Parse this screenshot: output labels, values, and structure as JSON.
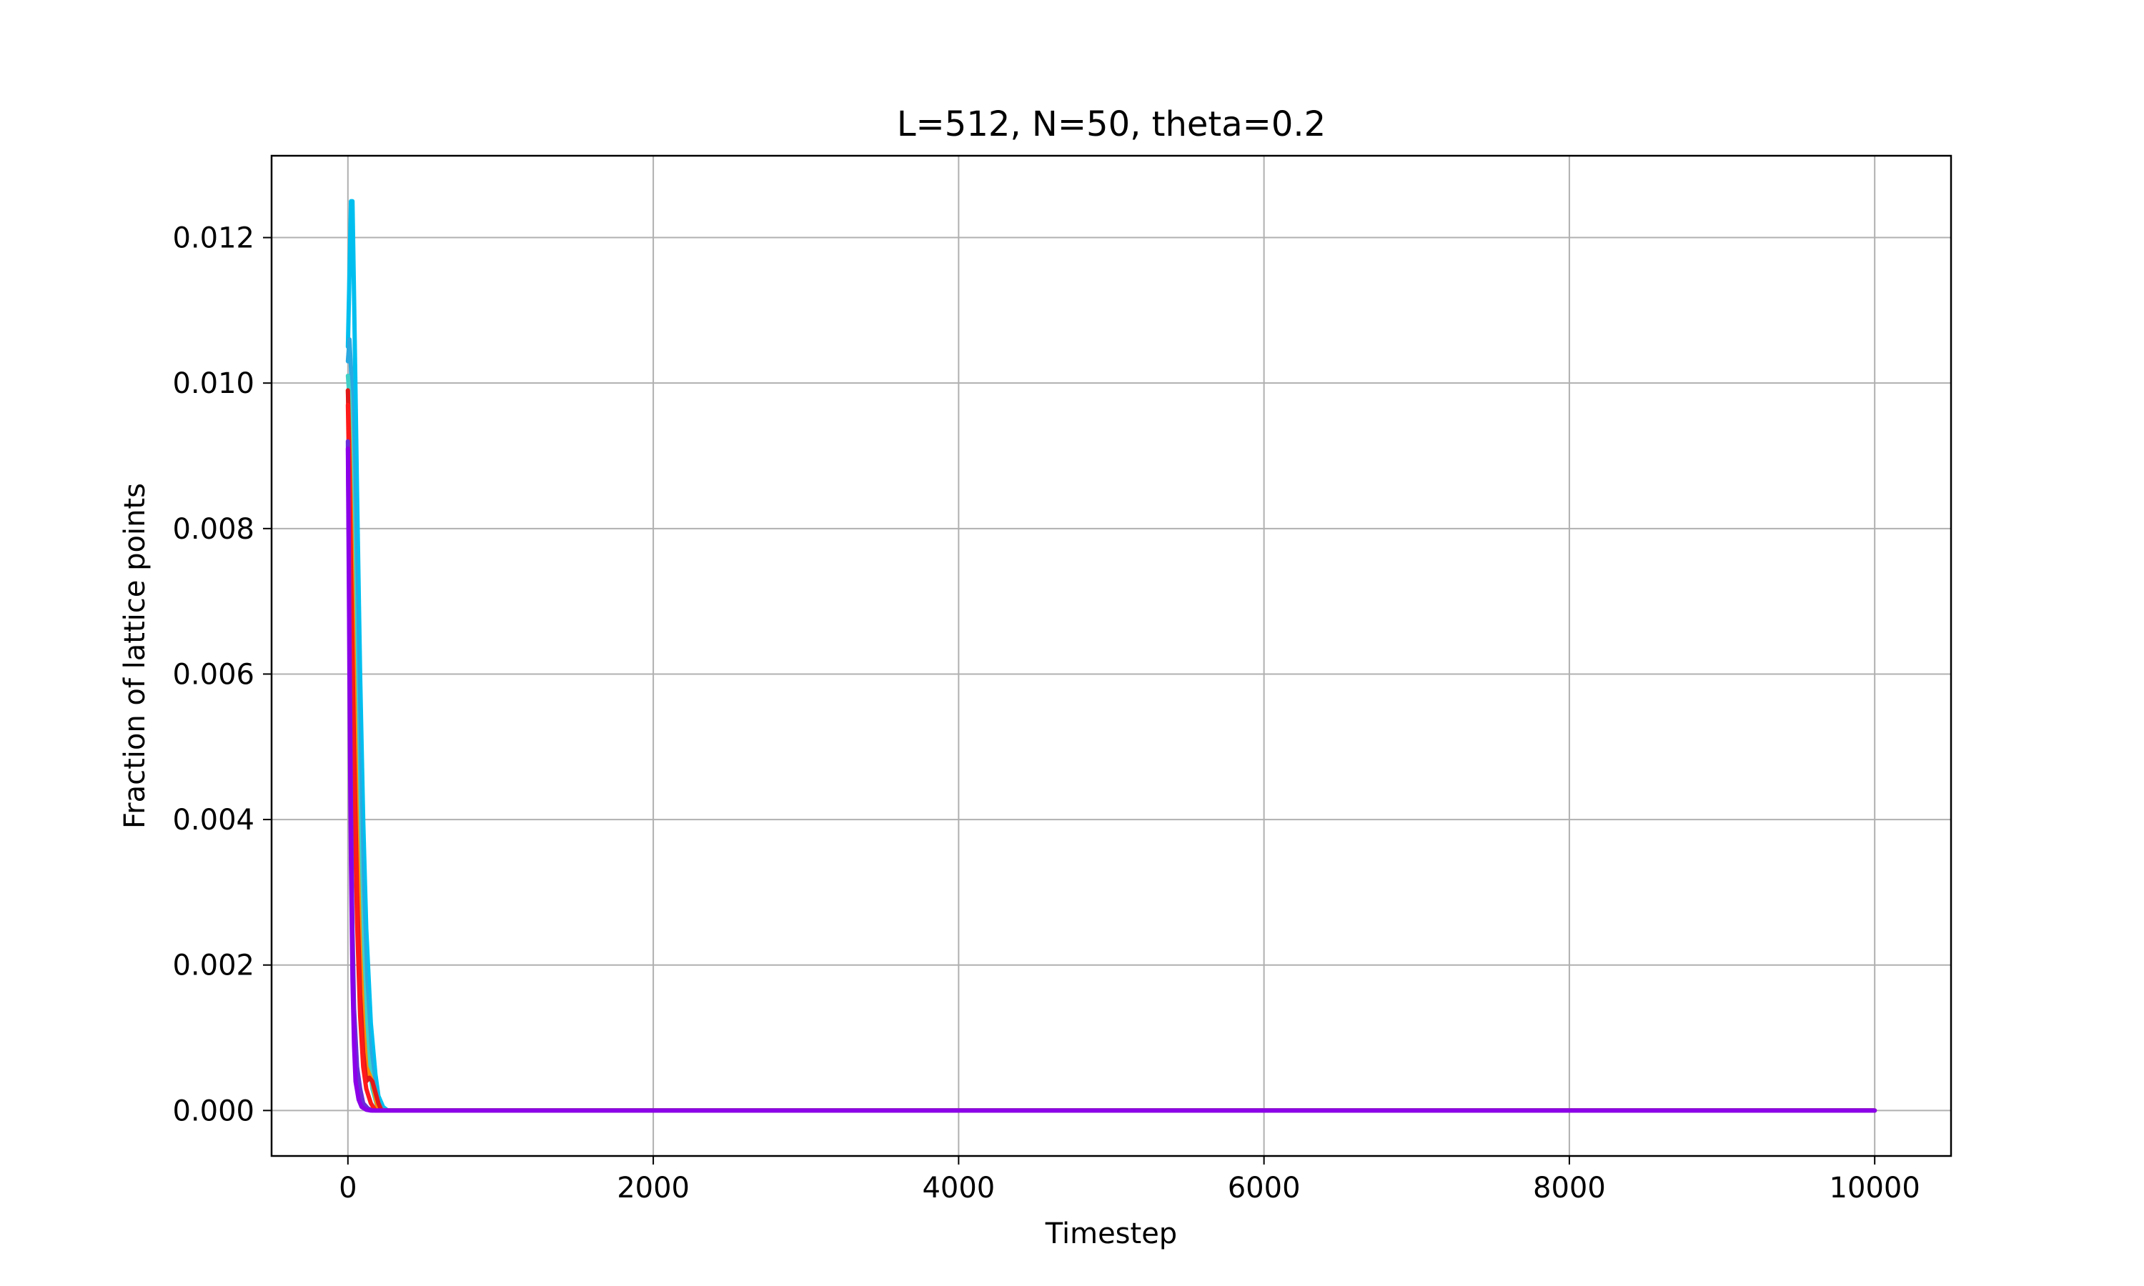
{
  "chart_data": {
    "type": "line",
    "title": "L=512, N=50, theta=0.2",
    "xlabel": "Timestep",
    "ylabel": "Fraction of lattice points",
    "xlim": [
      -500,
      10500
    ],
    "ylim": [
      -0.000625,
      0.013125
    ],
    "xticks": [
      0,
      2000,
      4000,
      6000,
      8000,
      10000
    ],
    "xtick_labels": [
      "0",
      "2000",
      "4000",
      "6000",
      "8000",
      "10000"
    ],
    "yticks": [
      0.0,
      0.002,
      0.004,
      0.006,
      0.008,
      0.01,
      0.012
    ],
    "ytick_labels": [
      "0.000",
      "0.002",
      "0.004",
      "0.006",
      "0.008",
      "0.010",
      "0.012"
    ],
    "grid": true,
    "legend": "none",
    "series": [
      {
        "color": "#00bfef",
        "x": [
          0,
          10,
          20,
          30,
          40,
          60,
          80,
          100,
          120,
          150,
          180,
          200,
          230,
          260,
          10000
        ],
        "y": [
          0.0105,
          0.0115,
          0.0125,
          0.0125,
          0.0112,
          0.0085,
          0.006,
          0.004,
          0.0025,
          0.0012,
          0.0005,
          0.0002,
          5e-05,
          0.0,
          0.0
        ]
      },
      {
        "color": "#2aa8e0",
        "x": [
          0,
          10,
          20,
          40,
          60,
          80,
          100,
          130,
          160,
          200,
          240,
          10000
        ],
        "y": [
          0.0103,
          0.0106,
          0.0102,
          0.0085,
          0.0062,
          0.0042,
          0.0026,
          0.0012,
          0.0005,
          0.0001,
          0.0,
          0.0
        ]
      },
      {
        "color": "#40d0c8",
        "x": [
          0,
          10,
          20,
          40,
          60,
          80,
          100,
          130,
          160,
          200,
          10000
        ],
        "y": [
          0.0101,
          0.0098,
          0.009,
          0.007,
          0.0048,
          0.003,
          0.0018,
          0.0008,
          0.0003,
          0.0,
          0.0
        ]
      },
      {
        "color": "#ff8c00",
        "x": [
          0,
          10,
          20,
          40,
          60,
          80,
          100,
          120,
          140,
          160,
          180,
          200,
          10000
        ],
        "y": [
          0.0099,
          0.0092,
          0.0082,
          0.006,
          0.0038,
          0.0022,
          0.0012,
          0.0006,
          0.0005,
          0.0004,
          0.0002,
          0.0,
          0.0
        ]
      },
      {
        "color": "#e01818",
        "x": [
          0,
          10,
          20,
          40,
          60,
          80,
          100,
          120,
          140,
          160,
          180,
          200,
          220,
          10000
        ],
        "y": [
          0.0099,
          0.0088,
          0.0075,
          0.005,
          0.003,
          0.0016,
          0.0008,
          0.0004,
          0.00045,
          0.0004,
          0.00025,
          0.0001,
          0.0,
          0.0
        ]
      },
      {
        "color": "#ff1a1a",
        "x": [
          0,
          10,
          20,
          40,
          60,
          80,
          100,
          120,
          150,
          180,
          10000
        ],
        "y": [
          0.0097,
          0.0085,
          0.007,
          0.0045,
          0.0026,
          0.0013,
          0.0006,
          0.0003,
          0.0001,
          0.0,
          0.0
        ]
      },
      {
        "color": "#6a2cd8",
        "x": [
          0,
          5,
          10,
          20,
          30,
          40,
          60,
          80,
          100,
          130,
          160,
          10000
        ],
        "y": [
          0.0092,
          0.008,
          0.0065,
          0.0042,
          0.0025,
          0.0014,
          0.0006,
          0.0003,
          0.0001,
          3e-05,
          0.0,
          0.0
        ]
      },
      {
        "color": "#8b00e8",
        "x": [
          0,
          5,
          10,
          15,
          20,
          30,
          40,
          50,
          70,
          90,
          120,
          150,
          10000
        ],
        "y": [
          0.0091,
          0.0076,
          0.006,
          0.0046,
          0.0034,
          0.0018,
          0.0009,
          0.0004,
          0.00015,
          5e-05,
          1e-05,
          0.0,
          0.0
        ]
      }
    ]
  }
}
